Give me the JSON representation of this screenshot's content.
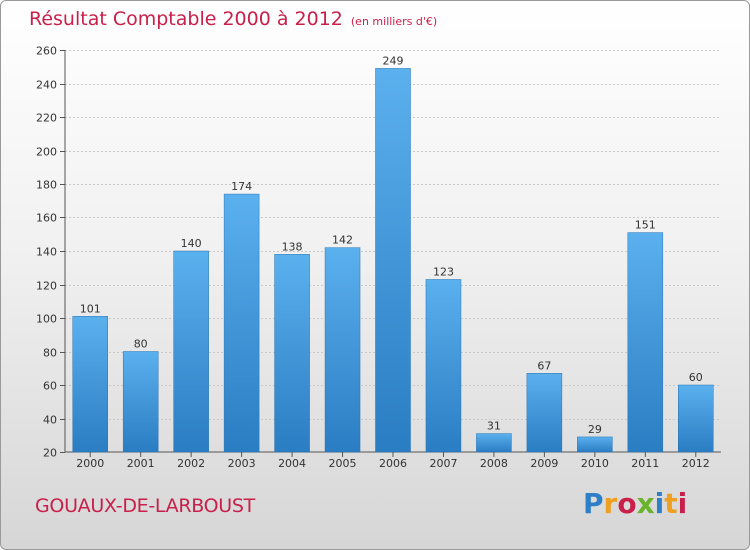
{
  "header": {
    "title": "Résultat Comptable 2000 à 2012",
    "subtitle": "(en milliers d'€)"
  },
  "footer": {
    "commune": "GOUAUX-DE-LARBOUST",
    "logo_letters": [
      "P",
      "r",
      "o",
      "x",
      "i",
      "t",
      "i"
    ],
    "logo_colors": [
      "#2f7fc8",
      "#f0a020",
      "#c8204a",
      "#6ab42d",
      "#2f7fc8",
      "#f0a020",
      "#c8204a"
    ]
  },
  "chart_data": {
    "type": "bar",
    "title": "Résultat Comptable 2000 à 2012",
    "subtitle": "(en milliers d'€)",
    "xlabel": "",
    "ylabel": "",
    "categories": [
      "2000",
      "2001",
      "2002",
      "2003",
      "2004",
      "2005",
      "2006",
      "2007",
      "2008",
      "2009",
      "2010",
      "2011",
      "2012"
    ],
    "values": [
      101,
      80,
      140,
      174,
      138,
      142,
      249,
      123,
      31,
      67,
      29,
      151,
      60
    ],
    "ylim": [
      20,
      260
    ],
    "yticks": [
      20,
      40,
      60,
      80,
      100,
      120,
      140,
      160,
      180,
      200,
      220,
      240,
      260
    ],
    "grid": true,
    "bar_color": "#3d92d8",
    "bar_color_light": "#5bb0ee"
  }
}
